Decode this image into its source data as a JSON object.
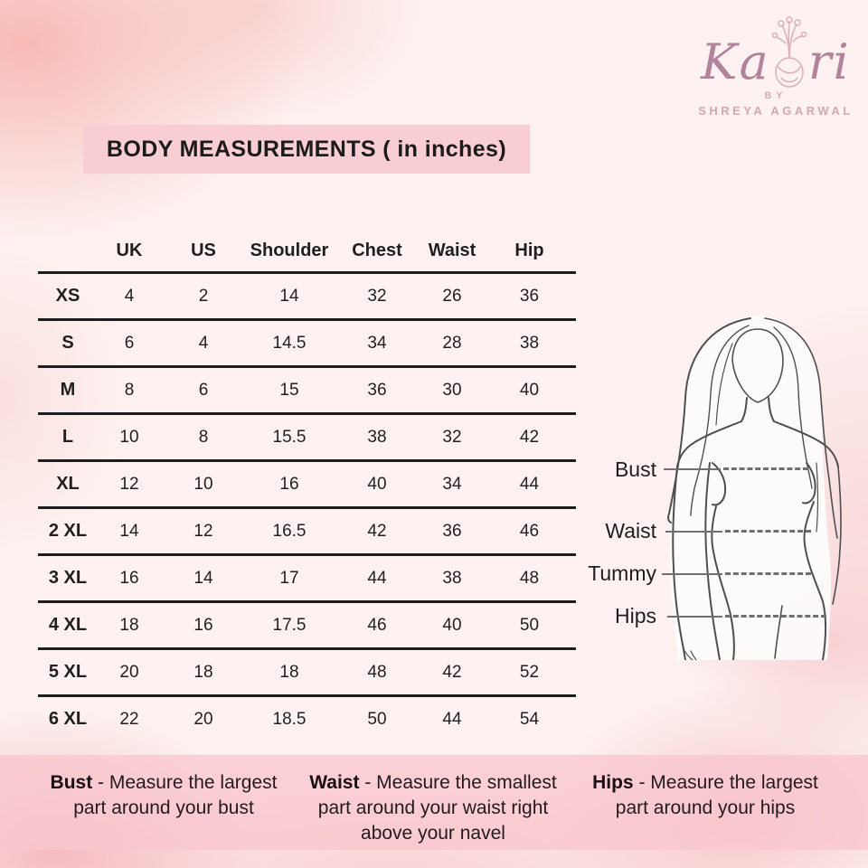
{
  "brand": {
    "name_left": "Ka",
    "name_right": "ri",
    "by": "BY",
    "owner": "SHREYA AGARWAL"
  },
  "title": "BODY MEASUREMENTS ( in inches)",
  "table": {
    "columns": [
      "UK",
      "US",
      "Shoulder",
      "Chest",
      "Waist",
      "Hip"
    ],
    "rows": [
      {
        "size": "XS",
        "values": [
          "4",
          "2",
          "14",
          "32",
          "26",
          "36"
        ]
      },
      {
        "size": "S",
        "values": [
          "6",
          "4",
          "14.5",
          "34",
          "28",
          "38"
        ]
      },
      {
        "size": "M",
        "values": [
          "8",
          "6",
          "15",
          "36",
          "30",
          "40"
        ]
      },
      {
        "size": "L",
        "values": [
          "10",
          "8",
          "15.5",
          "38",
          "32",
          "42"
        ]
      },
      {
        "size": "XL",
        "values": [
          "12",
          "10",
          "16",
          "40",
          "34",
          "44"
        ]
      },
      {
        "size": "2 XL",
        "values": [
          "14",
          "12",
          "16.5",
          "42",
          "36",
          "46"
        ]
      },
      {
        "size": "3 XL",
        "values": [
          "16",
          "14",
          "17",
          "44",
          "38",
          "48"
        ]
      },
      {
        "size": "4 XL",
        "values": [
          "18",
          "16",
          "17.5",
          "46",
          "40",
          "50"
        ]
      },
      {
        "size": "5 XL",
        "values": [
          "20",
          "18",
          "18",
          "48",
          "42",
          "52"
        ]
      },
      {
        "size": "6 XL",
        "values": [
          "22",
          "20",
          "18.5",
          "50",
          "44",
          "54"
        ]
      }
    ]
  },
  "figure": {
    "labels": [
      "Bust",
      "Waist",
      "Tummy",
      "Hips"
    ]
  },
  "notes": [
    {
      "label": "Bust",
      "rest": " - Measure the largest part around your bust"
    },
    {
      "label": "Waist",
      "rest": " - Measure the smallest part around your waist right above your navel"
    },
    {
      "label": "Hips",
      "rest": " - Measure the largest part around your hips"
    }
  ],
  "colors": {
    "banner_pink": "#f9cdd4",
    "band_pink": "#f8c7ce",
    "brand_mauve": "#b2849c",
    "brand_light_pink": "#d9acb9",
    "text_dark": "#1f1f1f",
    "sketch_gray": "#4f4f4f"
  }
}
